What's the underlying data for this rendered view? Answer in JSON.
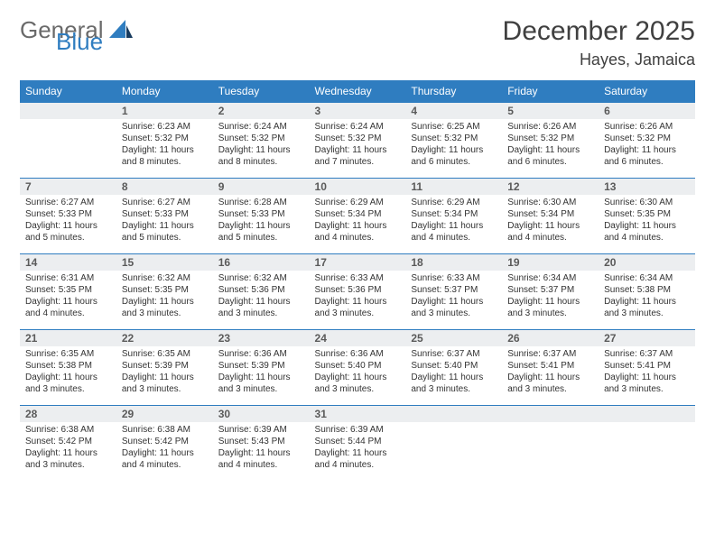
{
  "logo": {
    "word1": "General",
    "word2": "Blue"
  },
  "title": "December 2025",
  "location": "Hayes, Jamaica",
  "colors": {
    "header_bg": "#2f7dc0",
    "header_text": "#ffffff",
    "daynum_bg": "#eceef0",
    "daynum_text": "#5a5a5a",
    "rule": "#2f7dc0",
    "body_text": "#333333",
    "logo_gray": "#6a6a6a",
    "logo_blue": "#2f7dc0"
  },
  "weekdays": [
    "Sunday",
    "Monday",
    "Tuesday",
    "Wednesday",
    "Thursday",
    "Friday",
    "Saturday"
  ],
  "start_offset": 1,
  "days": [
    {
      "n": 1,
      "sr": "6:23 AM",
      "ss": "5:32 PM",
      "dl": "11 hours and 8 minutes."
    },
    {
      "n": 2,
      "sr": "6:24 AM",
      "ss": "5:32 PM",
      "dl": "11 hours and 8 minutes."
    },
    {
      "n": 3,
      "sr": "6:24 AM",
      "ss": "5:32 PM",
      "dl": "11 hours and 7 minutes."
    },
    {
      "n": 4,
      "sr": "6:25 AM",
      "ss": "5:32 PM",
      "dl": "11 hours and 6 minutes."
    },
    {
      "n": 5,
      "sr": "6:26 AM",
      "ss": "5:32 PM",
      "dl": "11 hours and 6 minutes."
    },
    {
      "n": 6,
      "sr": "6:26 AM",
      "ss": "5:32 PM",
      "dl": "11 hours and 6 minutes."
    },
    {
      "n": 7,
      "sr": "6:27 AM",
      "ss": "5:33 PM",
      "dl": "11 hours and 5 minutes."
    },
    {
      "n": 8,
      "sr": "6:27 AM",
      "ss": "5:33 PM",
      "dl": "11 hours and 5 minutes."
    },
    {
      "n": 9,
      "sr": "6:28 AM",
      "ss": "5:33 PM",
      "dl": "11 hours and 5 minutes."
    },
    {
      "n": 10,
      "sr": "6:29 AM",
      "ss": "5:34 PM",
      "dl": "11 hours and 4 minutes."
    },
    {
      "n": 11,
      "sr": "6:29 AM",
      "ss": "5:34 PM",
      "dl": "11 hours and 4 minutes."
    },
    {
      "n": 12,
      "sr": "6:30 AM",
      "ss": "5:34 PM",
      "dl": "11 hours and 4 minutes."
    },
    {
      "n": 13,
      "sr": "6:30 AM",
      "ss": "5:35 PM",
      "dl": "11 hours and 4 minutes."
    },
    {
      "n": 14,
      "sr": "6:31 AM",
      "ss": "5:35 PM",
      "dl": "11 hours and 4 minutes."
    },
    {
      "n": 15,
      "sr": "6:32 AM",
      "ss": "5:35 PM",
      "dl": "11 hours and 3 minutes."
    },
    {
      "n": 16,
      "sr": "6:32 AM",
      "ss": "5:36 PM",
      "dl": "11 hours and 3 minutes."
    },
    {
      "n": 17,
      "sr": "6:33 AM",
      "ss": "5:36 PM",
      "dl": "11 hours and 3 minutes."
    },
    {
      "n": 18,
      "sr": "6:33 AM",
      "ss": "5:37 PM",
      "dl": "11 hours and 3 minutes."
    },
    {
      "n": 19,
      "sr": "6:34 AM",
      "ss": "5:37 PM",
      "dl": "11 hours and 3 minutes."
    },
    {
      "n": 20,
      "sr": "6:34 AM",
      "ss": "5:38 PM",
      "dl": "11 hours and 3 minutes."
    },
    {
      "n": 21,
      "sr": "6:35 AM",
      "ss": "5:38 PM",
      "dl": "11 hours and 3 minutes."
    },
    {
      "n": 22,
      "sr": "6:35 AM",
      "ss": "5:39 PM",
      "dl": "11 hours and 3 minutes."
    },
    {
      "n": 23,
      "sr": "6:36 AM",
      "ss": "5:39 PM",
      "dl": "11 hours and 3 minutes."
    },
    {
      "n": 24,
      "sr": "6:36 AM",
      "ss": "5:40 PM",
      "dl": "11 hours and 3 minutes."
    },
    {
      "n": 25,
      "sr": "6:37 AM",
      "ss": "5:40 PM",
      "dl": "11 hours and 3 minutes."
    },
    {
      "n": 26,
      "sr": "6:37 AM",
      "ss": "5:41 PM",
      "dl": "11 hours and 3 minutes."
    },
    {
      "n": 27,
      "sr": "6:37 AM",
      "ss": "5:41 PM",
      "dl": "11 hours and 3 minutes."
    },
    {
      "n": 28,
      "sr": "6:38 AM",
      "ss": "5:42 PM",
      "dl": "11 hours and 3 minutes."
    },
    {
      "n": 29,
      "sr": "6:38 AM",
      "ss": "5:42 PM",
      "dl": "11 hours and 4 minutes."
    },
    {
      "n": 30,
      "sr": "6:39 AM",
      "ss": "5:43 PM",
      "dl": "11 hours and 4 minutes."
    },
    {
      "n": 31,
      "sr": "6:39 AM",
      "ss": "5:44 PM",
      "dl": "11 hours and 4 minutes."
    }
  ],
  "labels": {
    "sunrise": "Sunrise:",
    "sunset": "Sunset:",
    "daylight": "Daylight:"
  }
}
